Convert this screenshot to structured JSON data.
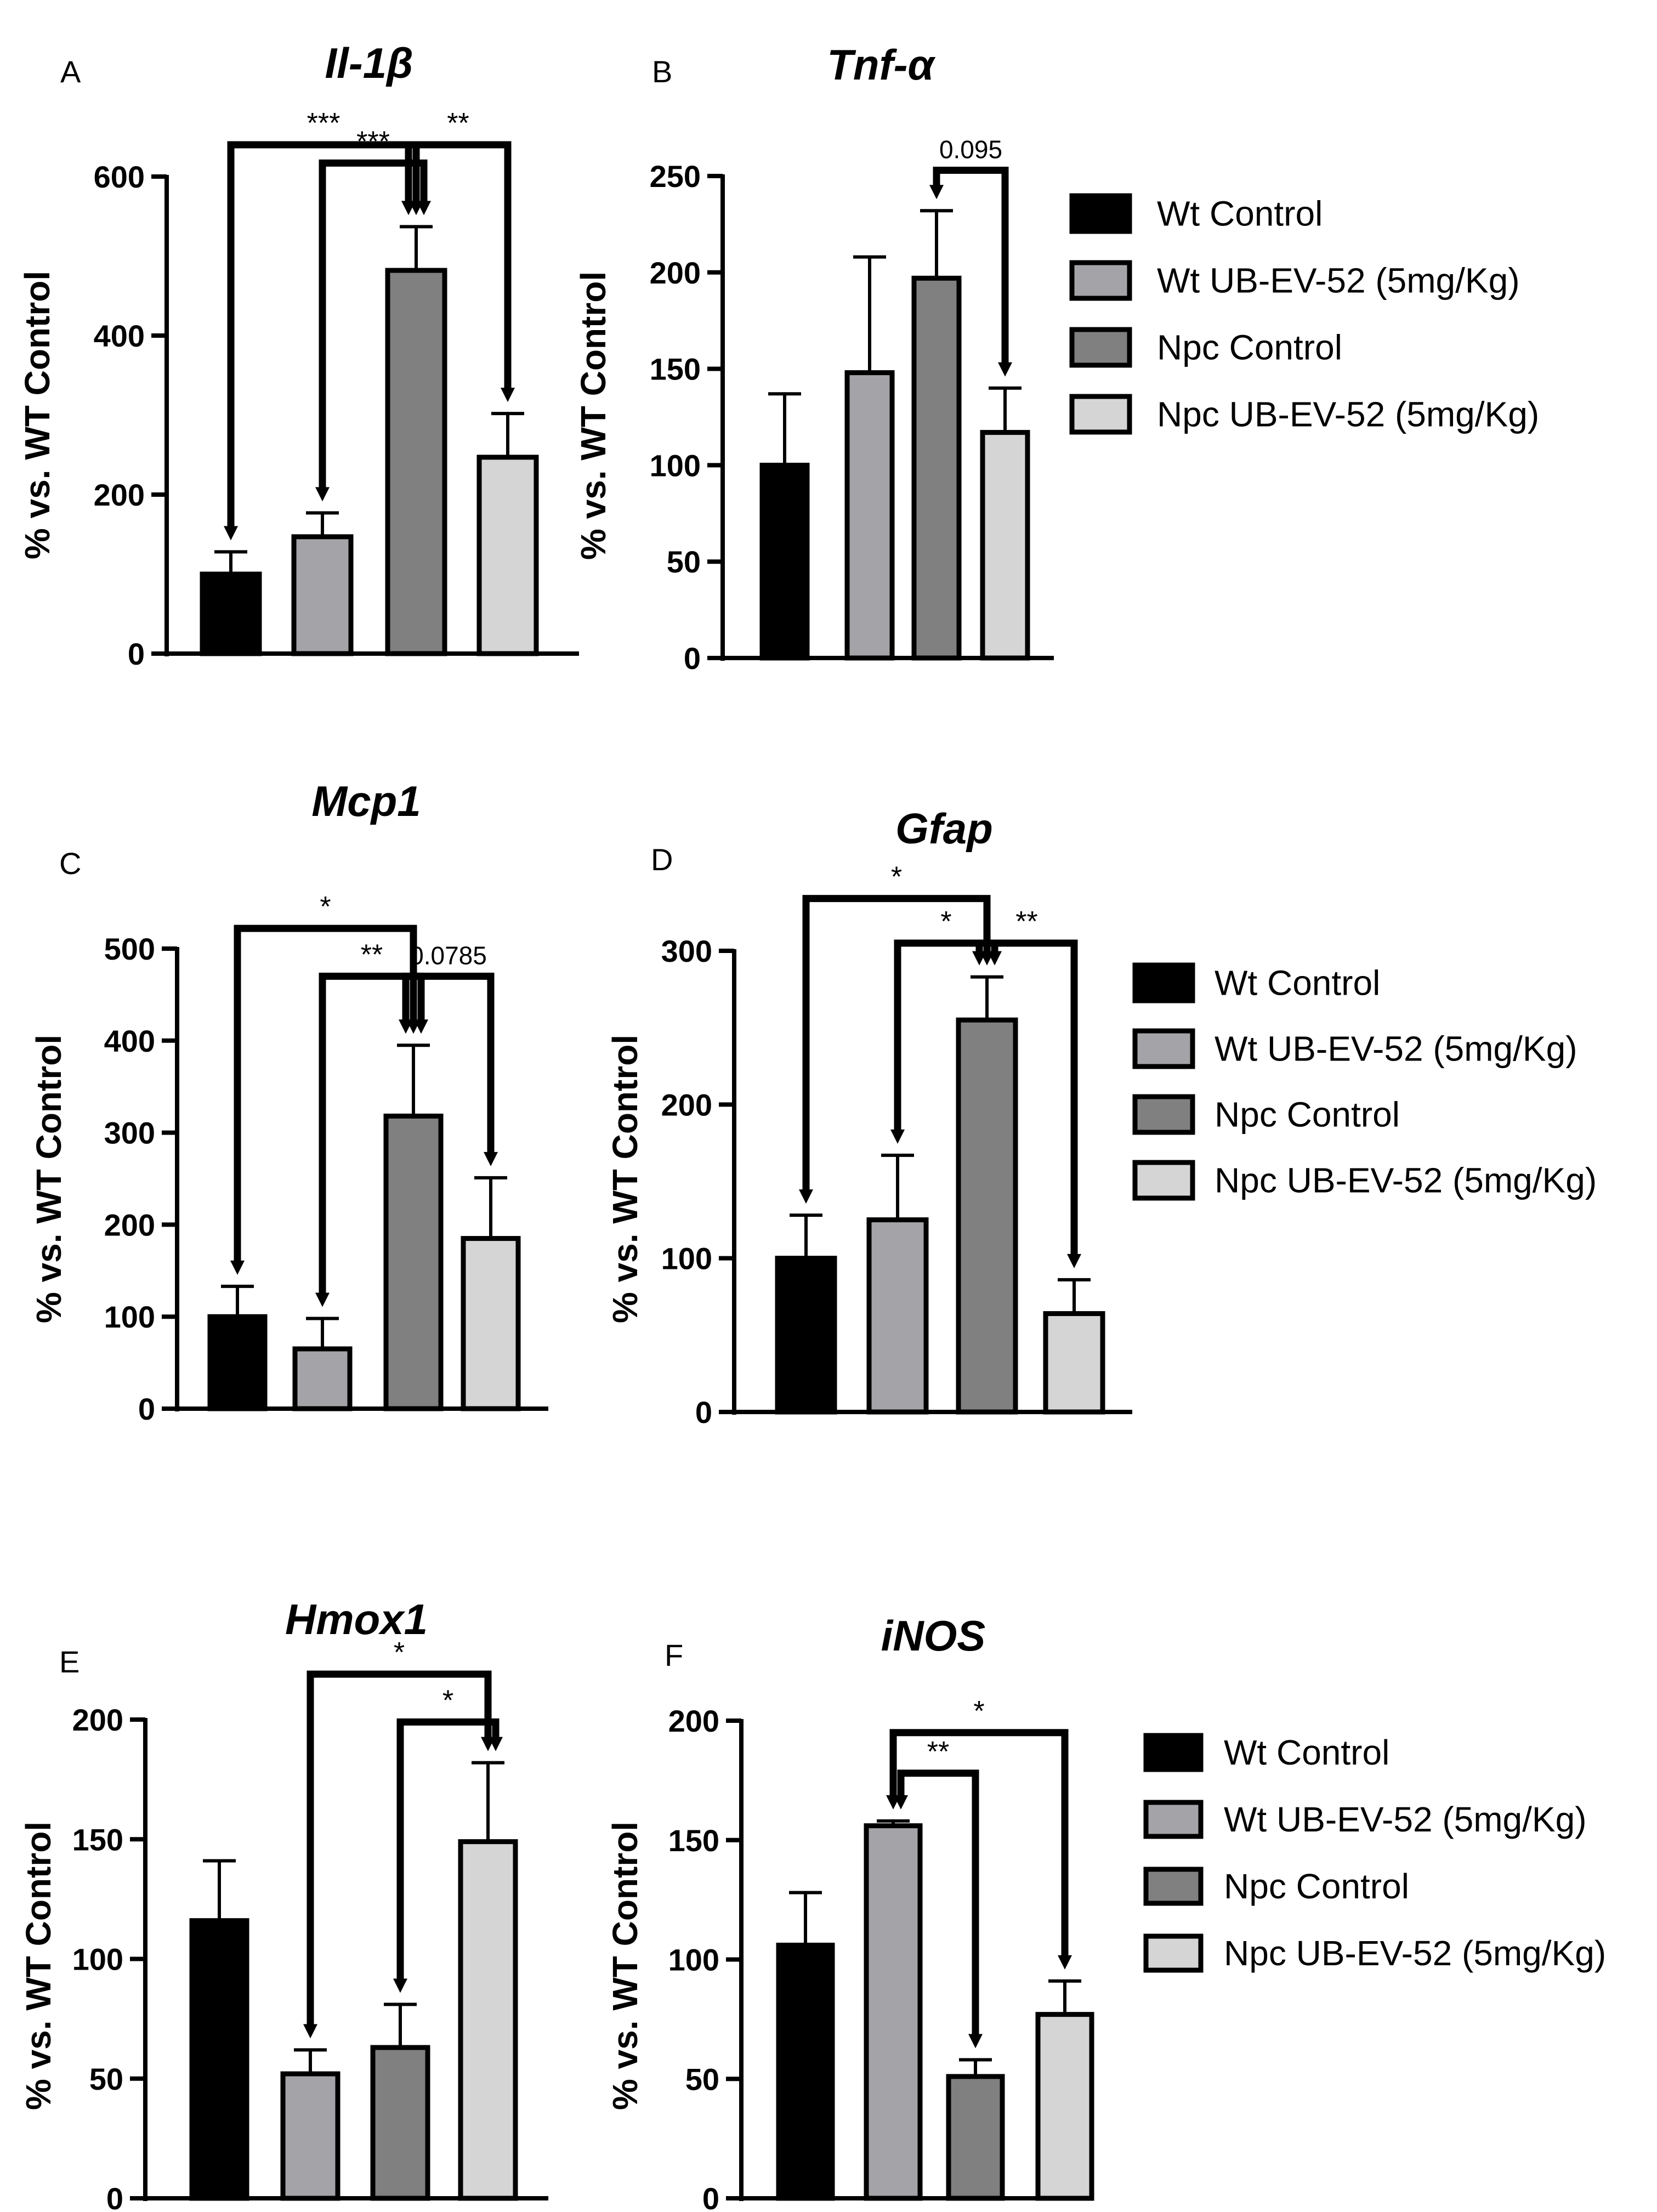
{
  "figure": {
    "colors": {
      "wt_control": "#000000",
      "wt_ubev52": "#a4a4a8",
      "npc_control": "#808080",
      "npc_ubev52": "#d5d5d5",
      "outline": "#000000"
    }
  },
  "chart_data": [
    {
      "type": "bar",
      "panel": "A",
      "title": "Il-1β",
      "ylabel": "% vs. WT Control",
      "xlabel": "",
      "ylim": [
        0,
        600
      ],
      "yticks": [
        0,
        200,
        400,
        600
      ],
      "categories": [
        "Wt Control",
        "Wt UB-EV-52 (5mg/Kg)",
        "Npc Control",
        "Npc UB-EV-52 (5mg/Kg)"
      ],
      "values": [
        100,
        147,
        482,
        247
      ],
      "errors": [
        28,
        30,
        55,
        55
      ],
      "annotations": [
        {
          "from": 0,
          "to": 2,
          "label": "***",
          "level": 640
        },
        {
          "from": 1,
          "to": 2,
          "label": "***",
          "level": 617
        },
        {
          "from": 2,
          "to": 3,
          "label": "**",
          "level": 640
        }
      ]
    },
    {
      "type": "bar",
      "panel": "B",
      "title": "Tnf-α",
      "ylabel": "% vs. WT Control",
      "xlabel": "",
      "ylim": [
        0,
        250
      ],
      "yticks": [
        0,
        50,
        100,
        150,
        200,
        250
      ],
      "categories": [
        "Wt Control",
        "Wt UB-EV-52 (5mg/Kg)",
        "Npc Control",
        "Npc UB-EV-52 (5mg/Kg)"
      ],
      "values": [
        100,
        148,
        197,
        117
      ],
      "errors": [
        37,
        60,
        35,
        23
      ],
      "annotations": [
        {
          "from": 2,
          "to": 3,
          "label": "0.095",
          "level": 253
        }
      ],
      "legend": [
        "Wt Control",
        "Wt UB-EV-52 (5mg/Kg)",
        "Npc Control",
        "Npc UB-EV-52 (5mg/Kg)"
      ]
    },
    {
      "type": "bar",
      "panel": "C",
      "title": "Mcp1",
      "ylabel": "% vs. WT Control",
      "xlabel": "",
      "ylim": [
        0,
        500
      ],
      "yticks": [
        0,
        100,
        200,
        300,
        400,
        500
      ],
      "categories": [
        "Wt Control",
        "Wt UB-EV-52 (5mg/Kg)",
        "Npc Control",
        "Npc UB-EV-52 (5mg/Kg)"
      ],
      "values": [
        100,
        65,
        318,
        185
      ],
      "errors": [
        33,
        33,
        77,
        66
      ],
      "annotations": [
        {
          "from": 0,
          "to": 2,
          "label": "*",
          "level": 522
        },
        {
          "from": 1,
          "to": 2,
          "label": "**",
          "level": 470
        },
        {
          "from": 2,
          "to": 3,
          "label": "0.0785",
          "level": 470
        }
      ]
    },
    {
      "type": "bar",
      "panel": "D",
      "title": "Gfap",
      "ylabel": "% vs. WT Control",
      "xlabel": "",
      "ylim": [
        0,
        300
      ],
      "yticks": [
        0,
        100,
        200,
        300
      ],
      "categories": [
        "Wt Control",
        "Wt UB-EV-52 (5mg/Kg)",
        "Npc Control",
        "Npc UB-EV-52 (5mg/Kg)"
      ],
      "values": [
        100,
        125,
        255,
        64
      ],
      "errors": [
        28,
        42,
        28,
        22
      ],
      "annotations": [
        {
          "from": 0,
          "to": 2,
          "label": "*",
          "level": 334
        },
        {
          "from": 1,
          "to": 2,
          "label": "*",
          "level": 305
        },
        {
          "from": 2,
          "to": 3,
          "label": "**",
          "level": 305
        }
      ],
      "legend": [
        "Wt Control",
        "Wt UB-EV-52 (5mg/Kg)",
        "Npc Control",
        "Npc UB-EV-52 (5mg/Kg)"
      ]
    },
    {
      "type": "bar",
      "panel": "E",
      "title": "Hmox1",
      "ylabel": "% vs. WT Control",
      "xlabel": "",
      "ylim": [
        0,
        200
      ],
      "yticks": [
        0,
        50,
        100,
        150,
        200
      ],
      "categories": [
        "Wt Control",
        "Wt UB-EV-52 (5mg/Kg)",
        "Npc Control",
        "Npc UB-EV-52 (5mg/Kg)"
      ],
      "values": [
        116,
        52,
        63,
        149
      ],
      "errors": [
        25,
        10,
        18,
        33
      ],
      "annotations": [
        {
          "from": 1,
          "to": 3,
          "label": "*",
          "level": 219
        },
        {
          "from": 2,
          "to": 3,
          "label": "*",
          "level": 199
        }
      ]
    },
    {
      "type": "bar",
      "panel": "F",
      "title": "iNOS",
      "ylabel": "% vs. WT Control",
      "xlabel": "",
      "ylim": [
        0,
        200
      ],
      "yticks": [
        0,
        50,
        100,
        150,
        200
      ],
      "categories": [
        "Wt Control",
        "Wt UB-EV-52 (5mg/Kg)",
        "Npc Control",
        "Npc UB-EV-52 (5mg/Kg)"
      ],
      "values": [
        106,
        156,
        51,
        77
      ],
      "errors": [
        22,
        2,
        7,
        14
      ],
      "annotations": [
        {
          "from": 1,
          "to": 3,
          "label": "*",
          "level": 195
        },
        {
          "from": 1,
          "to": 2,
          "label": "**",
          "level": 178
        }
      ],
      "legend": [
        "Wt Control",
        "Wt UB-EV-52 (5mg/Kg)",
        "Npc Control",
        "Npc UB-EV-52 (5mg/Kg)"
      ]
    }
  ]
}
